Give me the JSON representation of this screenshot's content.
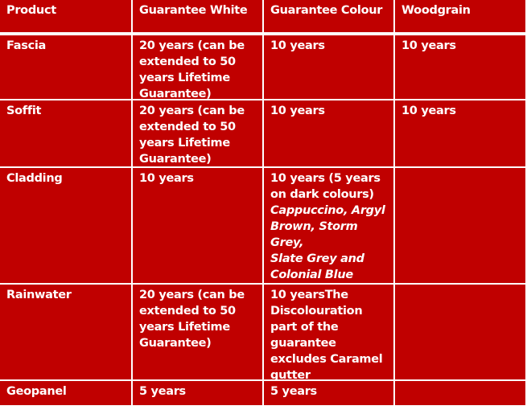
{
  "headers": [
    "Product",
    "Guarantee White",
    "Guarantee Colour",
    "Woodgrain"
  ],
  "rows": [
    {
      "product": "Fascia",
      "white": "20 years (can be extended to 50 years Lifetime Guarantee)",
      "colour": "10 years",
      "woodgrain": "10 years"
    },
    {
      "product": "Soffit",
      "white": "20 years (can be extended to 50 years Lifetime Guarantee)",
      "colour": "10 years",
      "woodgrain": "10 years"
    },
    {
      "product": "Cladding",
      "white": "10 years",
      "colour": "10 years (5 years on dark colours)",
      "colour_note": "Cappuccino, Argyl Brown, Storm Grey,",
      "colour_note2": "Slate Grey and Colonial Blue",
      "woodgrain": ""
    },
    {
      "product": "Rainwater",
      "white": "20 years (can be extended to 50 years Lifetime Guarantee)",
      "colour_a": "10 years",
      "colour_b": "The Discolouration part of the guarantee excludes Caramel gutter",
      "woodgrain": ""
    },
    {
      "product": "Geopanel",
      "white": "5 years",
      "colour": "5 years",
      "woodgrain": ""
    }
  ],
  "colors": {
    "cell_background": "#C00000",
    "text": "#FFFFFF",
    "border": "#FFFFFF"
  }
}
